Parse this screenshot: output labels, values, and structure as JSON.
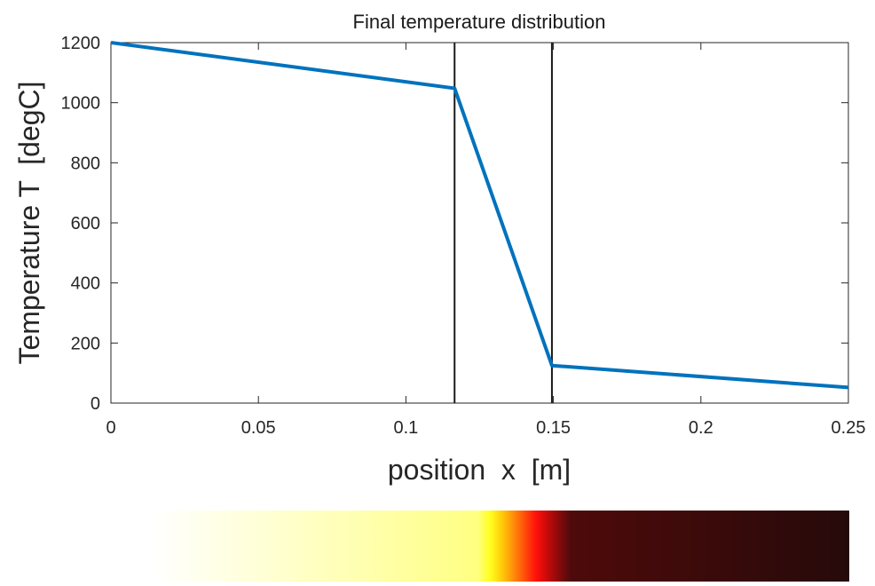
{
  "chart_data": {
    "type": "line",
    "title": "Final temperature distribution",
    "xlabel": "position  x  [m]",
    "ylabel": "Temperature T  [degC]",
    "xlim": [
      0,
      0.25
    ],
    "ylim": [
      0,
      1200
    ],
    "x_ticks": [
      0,
      0.05,
      0.1,
      0.15,
      0.2,
      0.25
    ],
    "x_tick_labels": [
      "0",
      "0.05",
      "0.1",
      "0.15",
      "0.2",
      "0.25"
    ],
    "y_ticks": [
      0,
      200,
      400,
      600,
      800,
      1000,
      1200
    ],
    "y_tick_labels": [
      "0",
      "200",
      "400",
      "600",
      "800",
      "1000",
      "1200"
    ],
    "grid": false,
    "series": [
      {
        "x": [
          0,
          0.1165,
          0.1495,
          0.25
        ],
        "y": [
          1200,
          1048,
          125,
          52
        ],
        "color": "#0072bd"
      }
    ],
    "vertical_lines": {
      "x": [
        0.1165,
        0.1495
      ],
      "color": "#1a1a1a"
    },
    "colorbar": {
      "colormap": "hot",
      "temperature_min": 0,
      "temperature_max": 1200
    }
  }
}
